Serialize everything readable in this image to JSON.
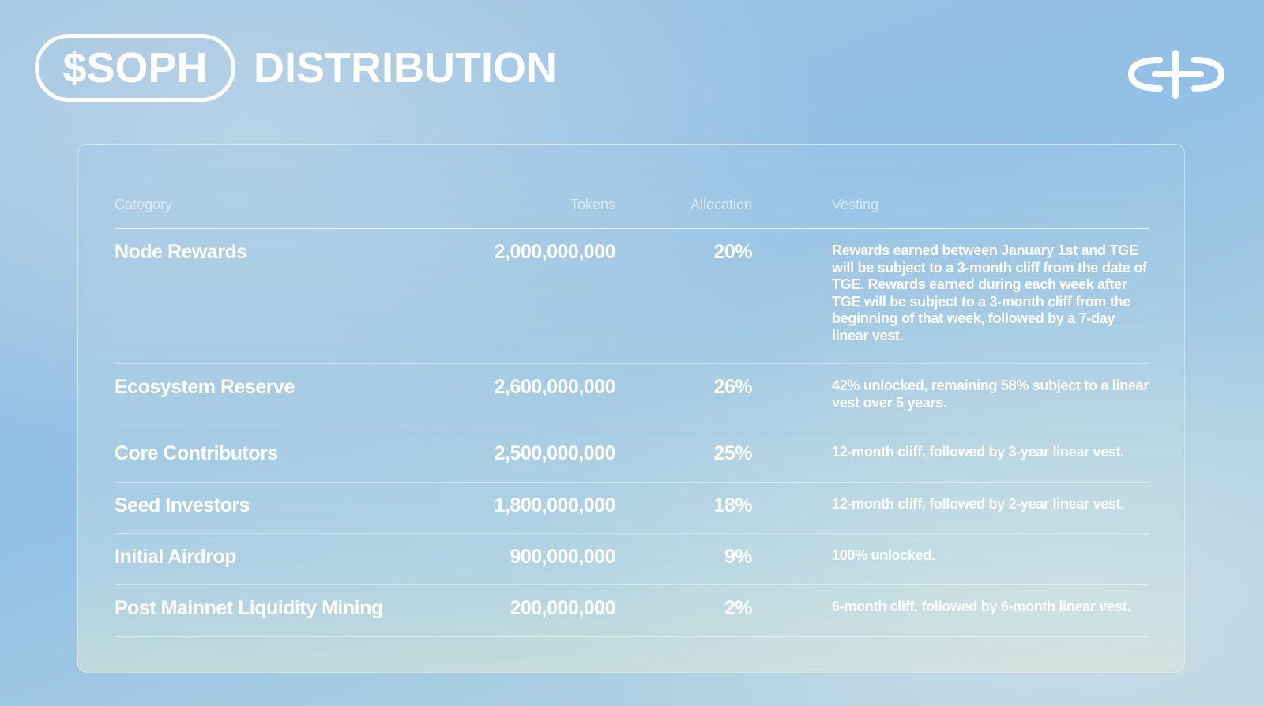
{
  "header": {
    "ticker": "$SOPH",
    "title": "DISTRIBUTION"
  },
  "logo": {
    "icon": "sophon-logo-icon"
  },
  "table": {
    "columns": [
      "Category",
      "Tokens",
      "Allocation",
      "Vesting"
    ],
    "rows": [
      {
        "category": "Node Rewards",
        "tokens": "2,000,000,000",
        "allocation": "20%",
        "vesting": "Rewards earned between January 1st and TGE will be subject to a 3-month cliff from the date of TGE. Rewards earned during each week after TGE will be subject to a 3-month cliff from the beginning of that week, followed by a 7-day linear vest."
      },
      {
        "category": "Ecosystem Reserve",
        "tokens": "2,600,000,000",
        "allocation": "26%",
        "vesting": "42% unlocked, remaining 58% subject to a linear vest over 5 years."
      },
      {
        "category": "Core Contributors",
        "tokens": "2,500,000,000",
        "allocation": "25%",
        "vesting": "12-month cliff, followed by 3-year linear vest."
      },
      {
        "category": "Seed Investors",
        "tokens": "1,800,000,000",
        "allocation": "18%",
        "vesting": "12-month cliff, followed by 2-year linear vest."
      },
      {
        "category": "Initial Airdrop",
        "tokens": "900,000,000",
        "allocation": "9%",
        "vesting": "100% unlocked."
      },
      {
        "category": "Post Mainnet Liquidity Mining",
        "tokens": "200,000,000",
        "allocation": "2%",
        "vesting": "6-month cliff, followed by 6-month linear vest."
      }
    ]
  }
}
